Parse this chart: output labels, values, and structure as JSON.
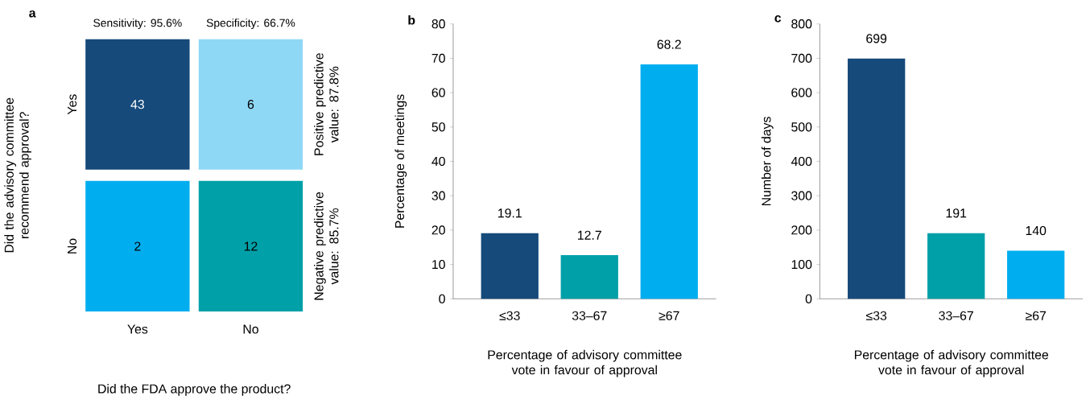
{
  "chart_data": [
    {
      "type": "heatmap",
      "title": "a",
      "xlabel": "Did the FDA approve the product?",
      "ylabel": "Did the advisory committee recommend approval?",
      "categories": [
        "Yes",
        "No"
      ],
      "y_categories": [
        "Yes",
        "No"
      ],
      "cells": [
        [
          43,
          6
        ],
        [
          2,
          12
        ]
      ],
      "data_labels": true,
      "colors": [
        [
          "#154a7a",
          "#8fd8f5"
        ],
        [
          "#00aeef",
          "#00a0a8"
        ]
      ],
      "annotations": [
        "Sensitivity: 95.6%",
        "Specificity: 66.7%",
        "Positive predictive value: 87.8%",
        "Negative predictive value: 85.7%"
      ]
    },
    {
      "type": "bar",
      "title": "b",
      "xlabel": "Percentage of advisory committee vote in favour of approval",
      "ylabel": "Percentage of meetings",
      "categories": [
        "≤33",
        "33–67",
        "≥67"
      ],
      "values": [
        19.1,
        12.7,
        68.2
      ],
      "colors": [
        "#154a7a",
        "#00a0a8",
        "#00aeef"
      ],
      "ylim": [
        0,
        80
      ],
      "yticks": [
        0,
        10,
        20,
        30,
        40,
        50,
        60,
        70,
        80
      ],
      "data_labels": true
    },
    {
      "type": "bar",
      "title": "c",
      "xlabel": "Percentage of advisory committee vote in favour of approval",
      "ylabel": "Number of days",
      "categories": [
        "≤33",
        "33–67",
        "≥67"
      ],
      "values": [
        699,
        191,
        140
      ],
      "colors": [
        "#154a7a",
        "#00a0a8",
        "#00aeef"
      ],
      "ylim": [
        0,
        800
      ],
      "yticks": [
        0,
        100,
        200,
        300,
        400,
        500,
        600,
        700,
        800
      ],
      "data_labels": true
    }
  ]
}
